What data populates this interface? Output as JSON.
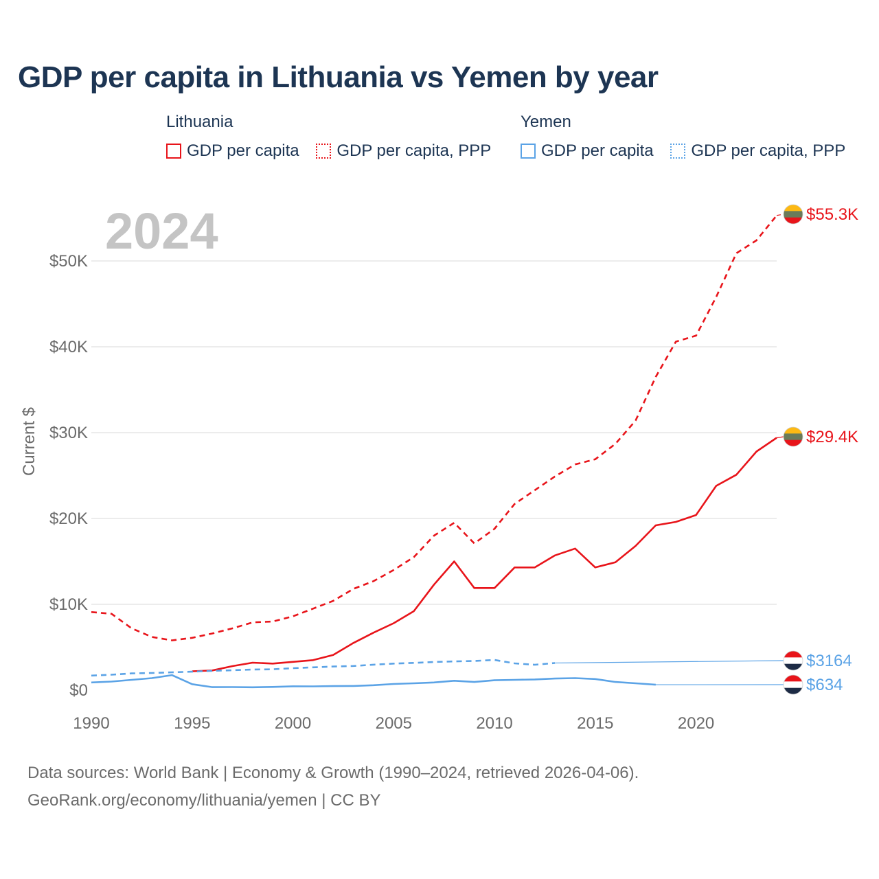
{
  "title": "GDP per capita in Lithuania vs Yemen by year",
  "legend": {
    "groups": [
      {
        "country": "Lithuania",
        "items": [
          "GDP per capita",
          "GDP per capita, PPP"
        ],
        "color": "#e8141a"
      },
      {
        "country": "Yemen",
        "items": [
          "GDP per capita",
          "GDP per capita, PPP"
        ],
        "color": "#5ba3e6"
      }
    ]
  },
  "year_label": "2024",
  "sources": {
    "line1": "Data sources: World Bank | Economy & Growth (1990–2024, retrieved 2026-04-06).",
    "line2": "GeoRank.org/economy/lithuania/yemen | CC BY"
  },
  "chart_data": {
    "type": "line",
    "title": "GDP per capita in Lithuania vs Yemen by year",
    "xlabel": "",
    "ylabel": "Current $",
    "xlim": [
      1990,
      2024
    ],
    "ylim": [
      0,
      55300
    ],
    "x_ticks": [
      1990,
      1995,
      2000,
      2005,
      2010,
      2015,
      2020
    ],
    "x_tick_labels": [
      "1990",
      "1995",
      "2000",
      "2005",
      "2010",
      "2015",
      "2020"
    ],
    "y_ticks": [
      0,
      10000,
      20000,
      30000,
      40000,
      50000
    ],
    "y_tick_labels": [
      "$0",
      "$10K",
      "$20K",
      "$30K",
      "$40K",
      "$50K"
    ],
    "grid": true,
    "series": [
      {
        "name": "Lithuania GDP per capita, PPP",
        "style": "dashed",
        "color": "#e8141a",
        "end_label": "$55.3K",
        "x": [
          1990,
          1991,
          1992,
          1993,
          1994,
          1995,
          1996,
          1997,
          1998,
          1999,
          2000,
          2001,
          2002,
          2003,
          2004,
          2005,
          2006,
          2007,
          2008,
          2009,
          2010,
          2011,
          2012,
          2013,
          2014,
          2015,
          2016,
          2017,
          2018,
          2019,
          2020,
          2021,
          2022,
          2023,
          2024
        ],
        "values": [
          9100,
          8900,
          7200,
          6200,
          5800,
          6100,
          6600,
          7200,
          7900,
          8000,
          8600,
          9500,
          10400,
          11800,
          12700,
          14000,
          15500,
          18000,
          19500,
          17100,
          18800,
          21700,
          23300,
          24900,
          26300,
          26900,
          28700,
          31400,
          36500,
          40600,
          41300,
          45800,
          50900,
          52400,
          55300
        ]
      },
      {
        "name": "Lithuania GDP per capita",
        "style": "solid",
        "color": "#e8141a",
        "end_label": "$29.4K",
        "x": [
          1995,
          1996,
          1997,
          1998,
          1999,
          2000,
          2001,
          2002,
          2003,
          2004,
          2005,
          2006,
          2007,
          2008,
          2009,
          2010,
          2011,
          2012,
          2013,
          2014,
          2015,
          2016,
          2017,
          2018,
          2019,
          2020,
          2021,
          2022,
          2023,
          2024
        ],
        "values": [
          2200,
          2300,
          2800,
          3200,
          3100,
          3300,
          3500,
          4100,
          5500,
          6700,
          7800,
          9200,
          12300,
          15000,
          11900,
          11900,
          14300,
          14300,
          15700,
          16500,
          14300,
          14900,
          16800,
          19200,
          19600,
          20400,
          23800,
          25100,
          27800,
          29400
        ]
      },
      {
        "name": "Yemen GDP per capita, PPP",
        "style": "dashed",
        "color": "#5ba3e6",
        "end_label": "$3164",
        "x": [
          1990,
          1991,
          1992,
          1993,
          1994,
          1995,
          1996,
          1997,
          1998,
          1999,
          2000,
          2001,
          2002,
          2003,
          2004,
          2005,
          2006,
          2007,
          2008,
          2009,
          2010,
          2011,
          2012,
          2013
        ],
        "values": [
          1700,
          1800,
          1950,
          2000,
          2080,
          2150,
          2250,
          2320,
          2400,
          2430,
          2560,
          2660,
          2750,
          2820,
          2970,
          3100,
          3180,
          3280,
          3350,
          3400,
          3520,
          3120,
          2960,
          3164
        ]
      },
      {
        "name": "Yemen GDP per capita",
        "style": "solid",
        "color": "#5ba3e6",
        "end_label": "$634",
        "x": [
          1990,
          1991,
          1992,
          1993,
          1994,
          1995,
          1996,
          1997,
          1998,
          1999,
          2000,
          2001,
          2002,
          2003,
          2004,
          2005,
          2006,
          2007,
          2008,
          2009,
          2010,
          2011,
          2012,
          2013,
          2014,
          2015,
          2016,
          2017,
          2018
        ],
        "values": [
          900,
          1000,
          1200,
          1400,
          1750,
          700,
          350,
          360,
          340,
          380,
          450,
          440,
          470,
          490,
          580,
          720,
          800,
          900,
          1100,
          950,
          1150,
          1200,
          1250,
          1350,
          1400,
          1300,
          950,
          800,
          634
        ]
      }
    ]
  }
}
